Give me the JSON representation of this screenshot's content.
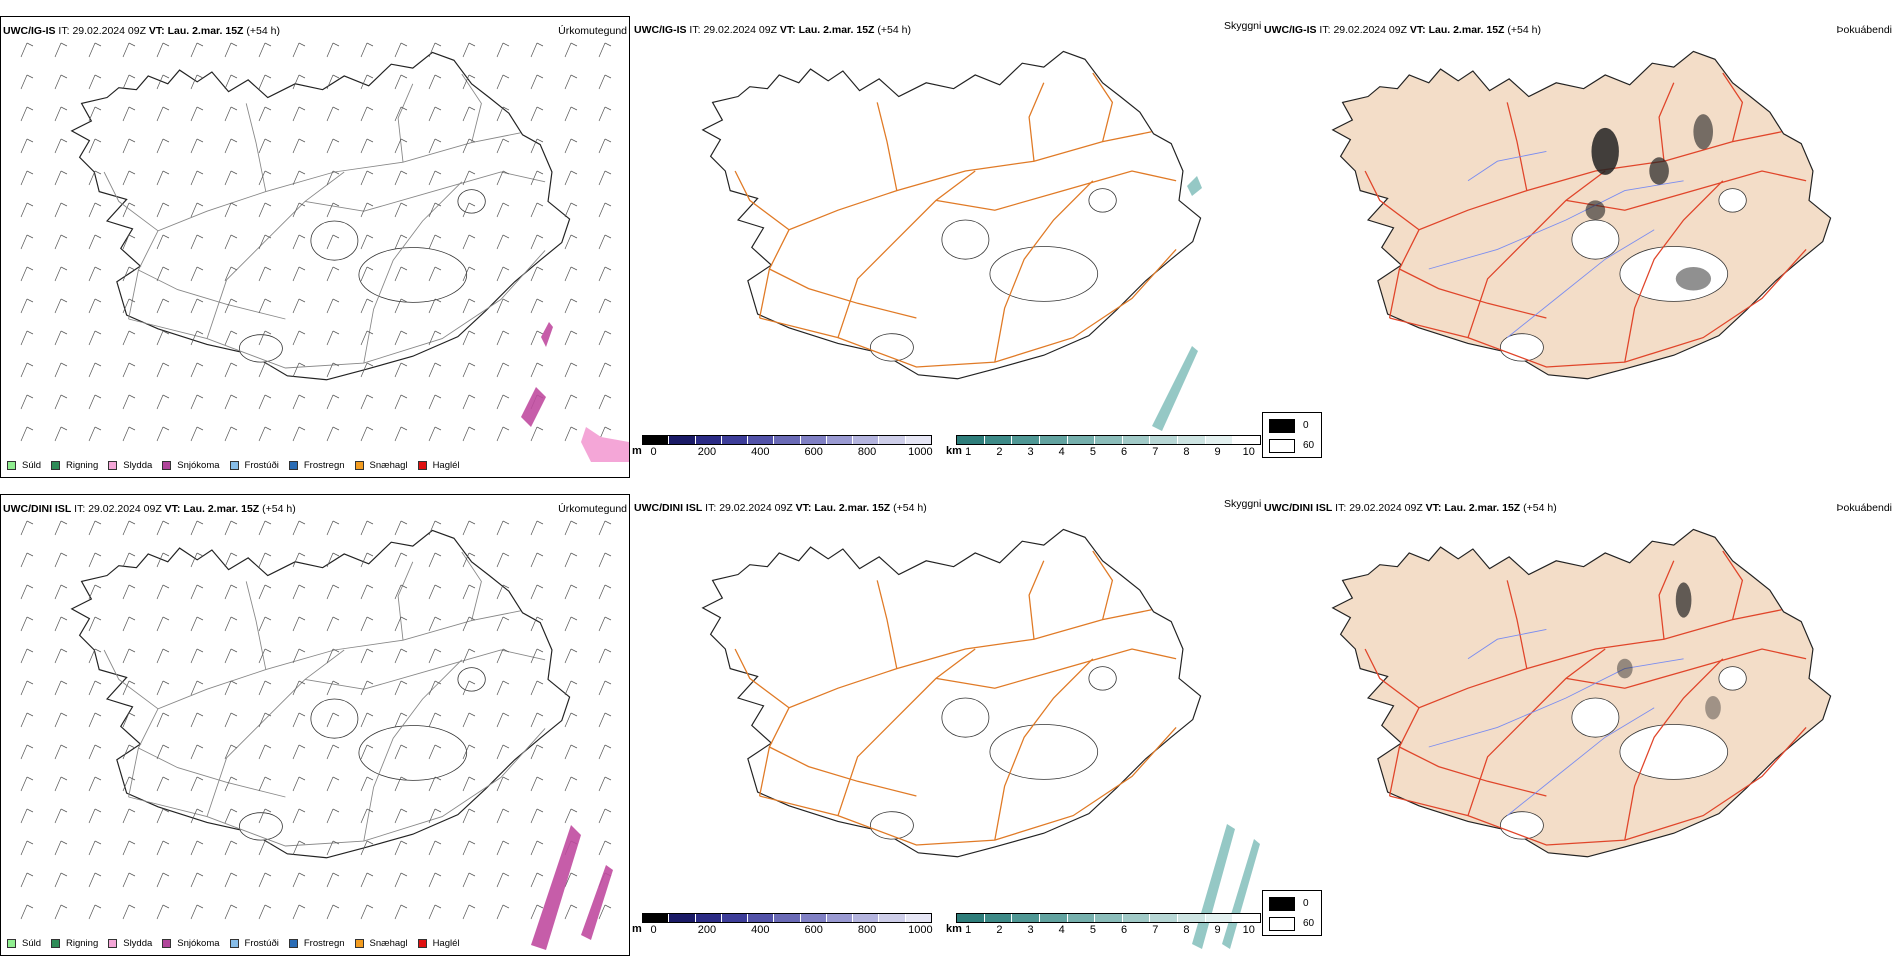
{
  "rows": [
    {
      "model": "UWC/IG-IS",
      "it_label": "IT:",
      "it_value": "29.02.2024 09Z",
      "vt_label": "VT:",
      "vt_value": "Lau. 2.mar. 15Z",
      "lead": "(+54 h)"
    },
    {
      "model": "UWC/DINI ISL",
      "it_label": "IT:",
      "it_value": "29.02.2024 09Z",
      "vt_label": "VT:",
      "vt_value": "Lau. 2.mar. 15Z",
      "lead": "(+54 h)"
    }
  ],
  "panels": {
    "precip": {
      "variable": "Úrkomutegund"
    },
    "visibility": {
      "variable": "Skyggni"
    },
    "fog": {
      "variable": "Þokuábendi"
    }
  },
  "precip_legend": [
    {
      "label": "Súld",
      "color": "#90ee90"
    },
    {
      "label": "Rigning",
      "color": "#2e8b57"
    },
    {
      "label": "Slydda",
      "color": "#f4a6d7"
    },
    {
      "label": "Snjókoma",
      "color": "#b0459a"
    },
    {
      "label": "Frostúði",
      "color": "#87bde8"
    },
    {
      "label": "Frostregn",
      "color": "#2a6cb5"
    },
    {
      "label": "Snæhagl",
      "color": "#f39c1f"
    },
    {
      "label": "Haglél",
      "color": "#e01010"
    }
  ],
  "elevation_bar": {
    "unit": "m",
    "ticks": [
      "0",
      "200",
      "400",
      "600",
      "800",
      "1000"
    ],
    "colors": [
      "#000000",
      "#1a1a66",
      "#2b2b85",
      "#3d3d99",
      "#5252a8",
      "#6a6ab6",
      "#8080c4",
      "#9a9ad2",
      "#b4b4de",
      "#cecee9",
      "#e6e6f5"
    ]
  },
  "visibility_bar": {
    "unit": "km",
    "ticks": [
      "1",
      "2",
      "3",
      "4",
      "5",
      "6",
      "7",
      "8",
      "9",
      "10"
    ],
    "colors": [
      "#2e7d7a",
      "#3d8a87",
      "#4f9794",
      "#62a3a0",
      "#76b0ad",
      "#8bbdba",
      "#a1cac7",
      "#b7d7d5",
      "#cde4e2",
      "#e3f1f0",
      "#ffffff"
    ]
  },
  "fog_legend": {
    "items": [
      {
        "label": "0",
        "color": "#000000"
      },
      {
        "label": "60",
        "color": "#ffffff"
      }
    ]
  },
  "colors": {
    "land_fog": "#f3ddc8",
    "roads": "#e07a26",
    "roads_fog": "#e0452a",
    "rivers": "#7a8cf0",
    "snow": "#c04ba0",
    "vis_low": "#4fa39f"
  }
}
